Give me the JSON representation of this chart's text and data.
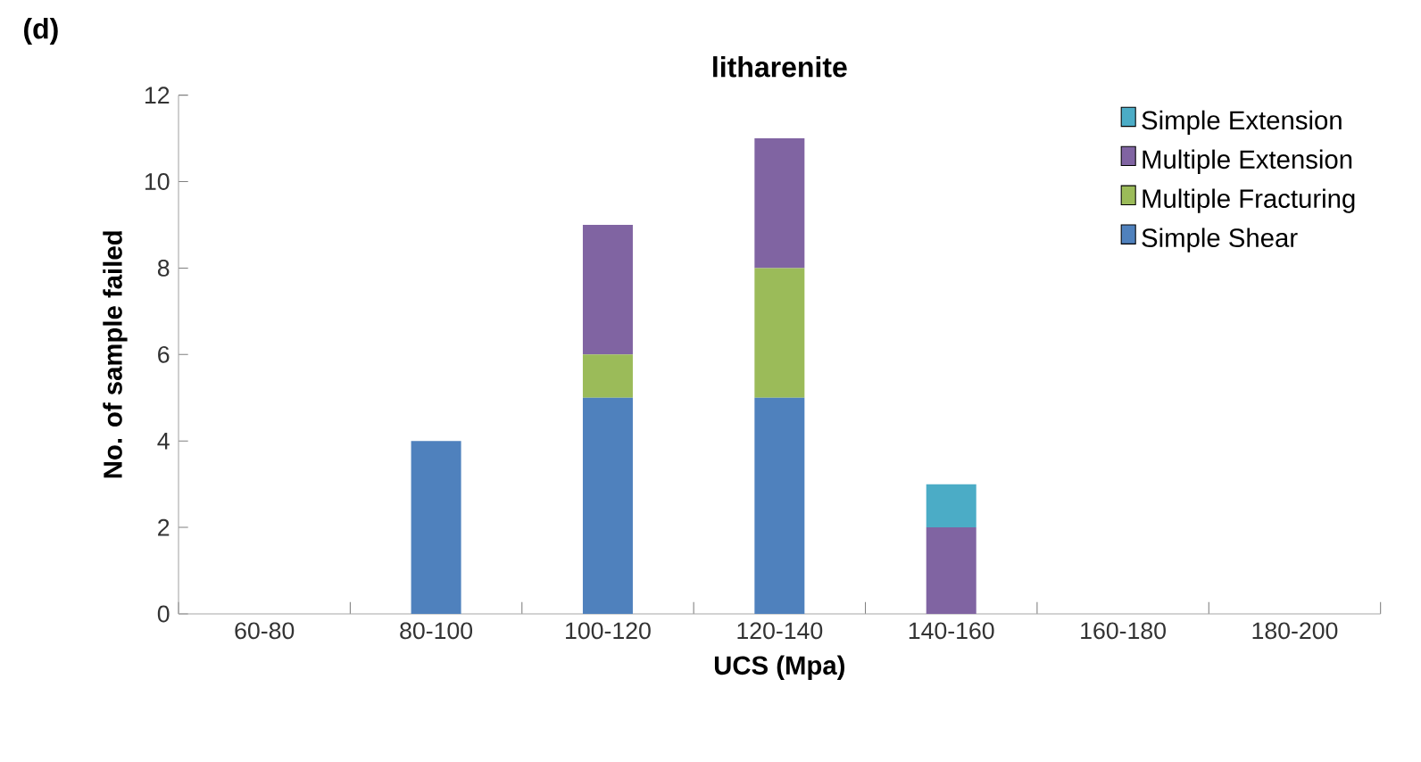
{
  "chart_data": {
    "type": "bar",
    "stacked": true,
    "title": "litharenite",
    "annotations": [
      "(d)"
    ],
    "xlabel": "UCS (Mpa)",
    "ylabel": "No. of sample failed",
    "categories": [
      "60-80",
      "80-100",
      "100-120",
      "120-140",
      "140-160",
      "160-180",
      "180-200"
    ],
    "series": [
      {
        "name": "Simple Shear",
        "color": "#4f81bd",
        "values": [
          0,
          4,
          5,
          5,
          0,
          0,
          0
        ]
      },
      {
        "name": "Multiple Fracturing",
        "color": "#9bbb59",
        "values": [
          0,
          0,
          1,
          3,
          0,
          0,
          0
        ]
      },
      {
        "name": "Multiple Extension",
        "color": "#8064a2",
        "values": [
          0,
          0,
          3,
          3,
          2,
          0,
          0
        ]
      },
      {
        "name": "Simple Extension",
        "color": "#4bacc6",
        "values": [
          0,
          0,
          0,
          0,
          1,
          0,
          0
        ]
      }
    ],
    "ylim": [
      0,
      12
    ],
    "yticks": [
      0,
      2,
      4,
      6,
      8,
      10,
      12
    ],
    "grid": false,
    "legend": "top right"
  }
}
